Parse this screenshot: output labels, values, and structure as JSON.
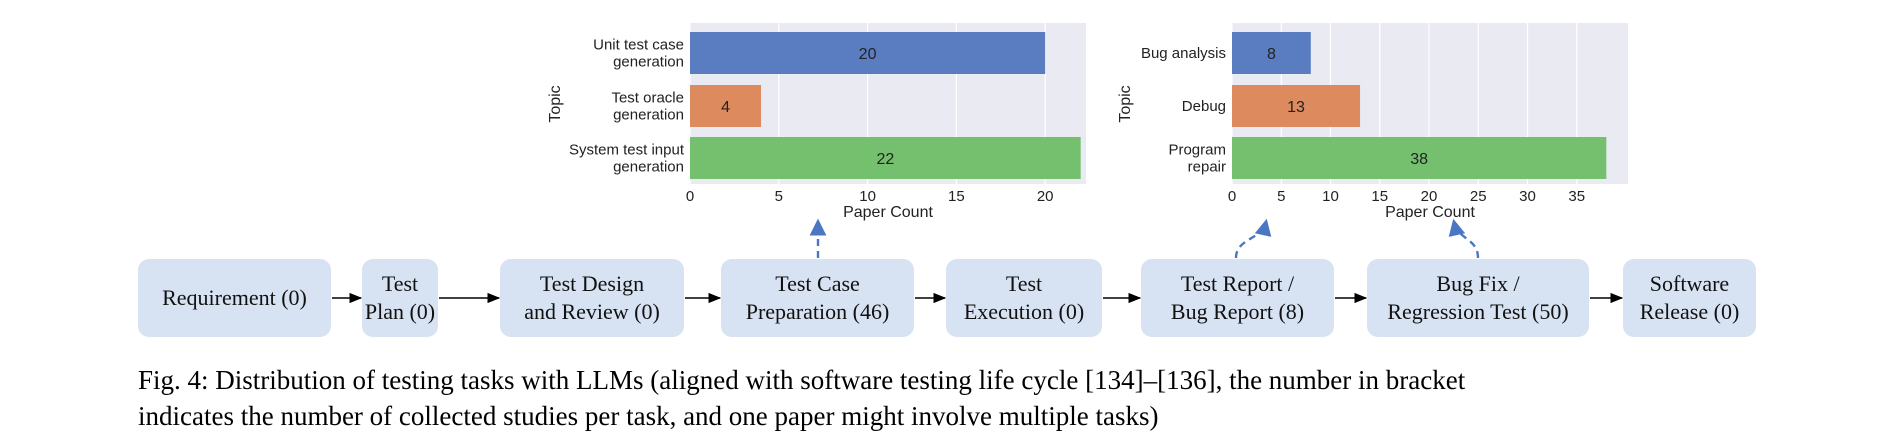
{
  "chart_data": [
    {
      "type": "bar",
      "orientation": "horizontal",
      "ylabel": "Topic",
      "xlabel": "Paper Count",
      "categories": [
        [
          "Unit test case",
          "generation"
        ],
        [
          "Test oracle",
          "generation"
        ],
        [
          "System test input",
          "generation"
        ]
      ],
      "values": [
        20,
        4,
        22
      ],
      "colors": [
        "#5a7dc2",
        "#dd8a5e",
        "#74c06e"
      ],
      "xlim": [
        0,
        22.3
      ],
      "xticks": [
        0,
        5,
        10,
        15,
        20
      ],
      "grid": true
    },
    {
      "type": "bar",
      "orientation": "horizontal",
      "ylabel": "Topic",
      "xlabel": "Paper Count",
      "categories": [
        [
          "Bug analysis"
        ],
        [
          "Debug"
        ],
        [
          "Program",
          "repair"
        ]
      ],
      "values": [
        8,
        13,
        38
      ],
      "colors": [
        "#5a7dc2",
        "#dd8a5e",
        "#74c06e"
      ],
      "xlim": [
        0,
        40.2
      ],
      "xticks": [
        0,
        5,
        10,
        15,
        20,
        25,
        30,
        35
      ],
      "grid": true
    }
  ],
  "lifecycle": {
    "stages": [
      {
        "lines": [
          "Requirement (0)"
        ]
      },
      {
        "lines": [
          "Test",
          "Plan (0)"
        ]
      },
      {
        "lines": [
          "Test Design",
          "and Review (0)"
        ]
      },
      {
        "lines": [
          "Test Case",
          "Preparation (46)"
        ]
      },
      {
        "lines": [
          "Test",
          "Execution (0)"
        ]
      },
      {
        "lines": [
          "Test Report /",
          "Bug Report (8)"
        ]
      },
      {
        "lines": [
          "Bug Fix /",
          "Regression Test (50)"
        ]
      },
      {
        "lines": [
          "Software",
          "Release (0)"
        ]
      }
    ],
    "arrow_color": "#000000",
    "link_color": "#4a76c4"
  },
  "caption": {
    "line1": "Fig. 4: Distribution of testing tasks with LLMs (aligned with software testing life cycle [134]–[136], the number in bracket",
    "line2": "indicates the number of collected studies per task, and one paper might involve multiple tasks)"
  }
}
